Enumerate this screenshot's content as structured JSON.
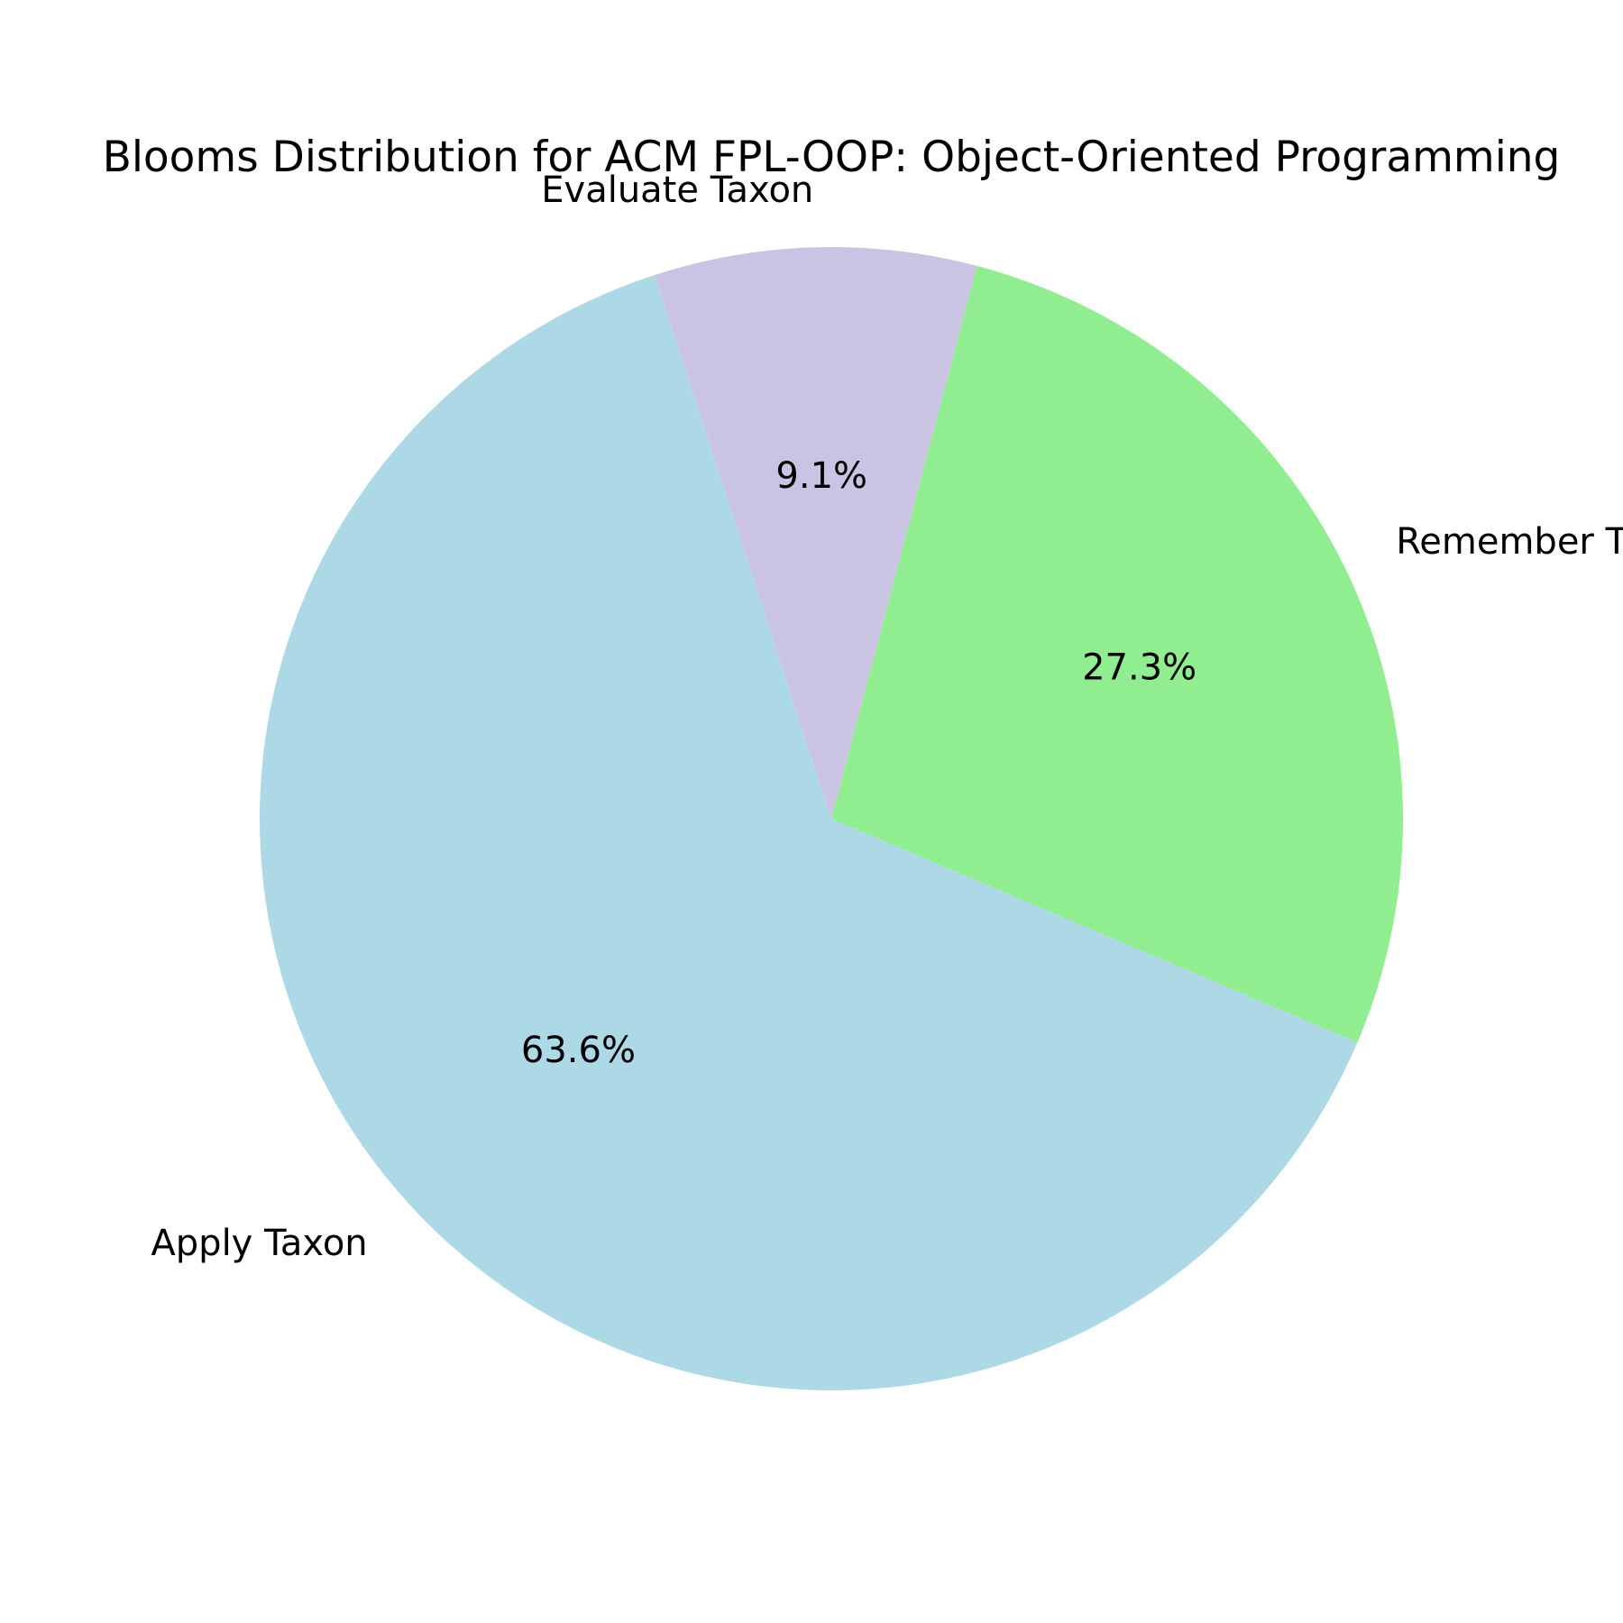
{
  "chart_data": {
    "type": "pie",
    "title": "Blooms Distribution for ACM FPL-OOP: Object-Oriented Programming",
    "slices": [
      {
        "label": "Apply Taxon",
        "value": 63.6,
        "pct_label": "63.6%",
        "color": "#add8e6"
      },
      {
        "label": "Remember Taxon",
        "value": 27.3,
        "pct_label": "27.3%",
        "color": "#90ee90"
      },
      {
        "label": "Evaluate Taxon",
        "value": 9.1,
        "pct_label": "9.1%",
        "color": "#cbc3e3"
      }
    ],
    "start_angle_deg": 108,
    "direction": "counterclockwise",
    "legend": "none"
  }
}
